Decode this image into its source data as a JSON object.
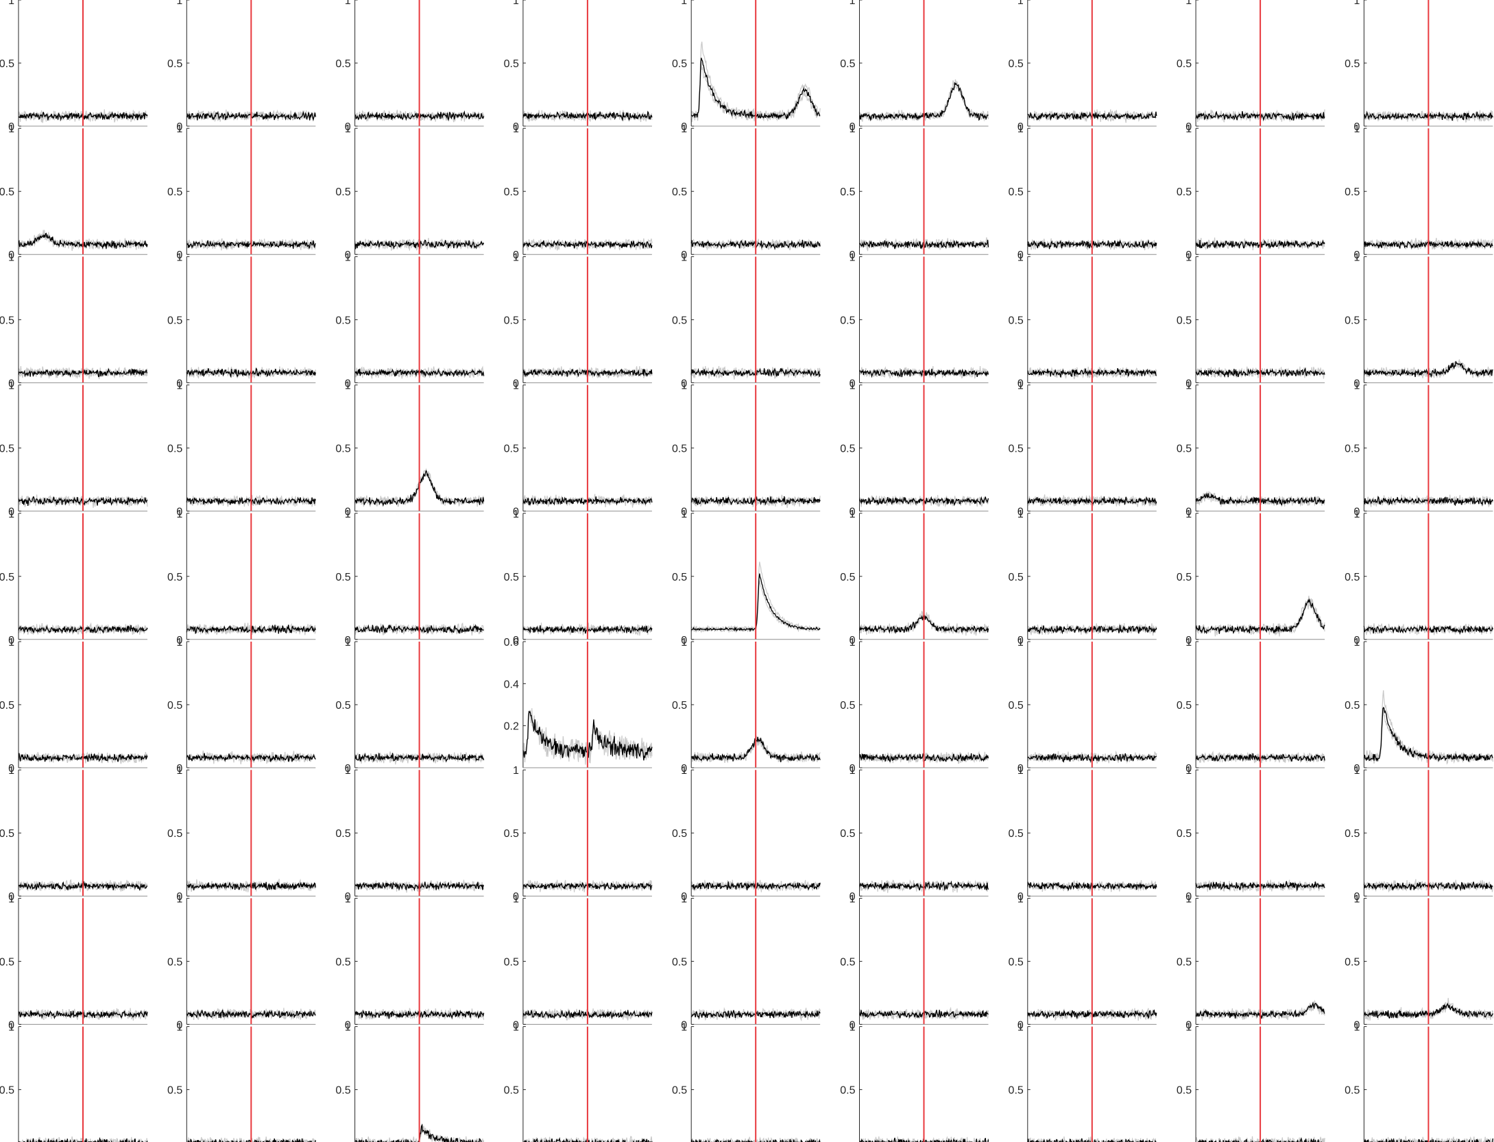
{
  "figure": {
    "rows": 9,
    "cols": 9
  },
  "colors": {
    "mean": "#000000",
    "trials": "#c8c8c8",
    "marker": "#e8383d",
    "axis": "#262626",
    "baseline": "#909090"
  },
  "chart_data": {
    "type": "line",
    "title": "",
    "xlabel": "",
    "ylabel": "",
    "default_ylim": [
      0,
      1
    ],
    "default_yticks": [
      "0",
      "0.5",
      "1"
    ],
    "series_names": [
      "trials",
      "mean"
    ],
    "marker": {
      "type": "vline",
      "x_fraction": 0.5
    },
    "baseline_level": 0.08,
    "noise_amplitude": 0.04,
    "panels": [
      {
        "row": 1,
        "col": 1
      },
      {
        "row": 1,
        "col": 2
      },
      {
        "row": 1,
        "col": 3
      },
      {
        "row": 1,
        "col": 4
      },
      {
        "row": 1,
        "col": 5,
        "spread": 0.2,
        "events": [
          {
            "at": 0.08,
            "peak": 0.55,
            "kind": "decay"
          },
          {
            "at": 0.88,
            "peak": 0.28,
            "kind": "bump"
          }
        ]
      },
      {
        "row": 1,
        "col": 6,
        "events": [
          {
            "at": 0.75,
            "peak": 0.33,
            "kind": "bump"
          }
        ]
      },
      {
        "row": 1,
        "col": 7
      },
      {
        "row": 1,
        "col": 8
      },
      {
        "row": 1,
        "col": 9
      },
      {
        "row": 2,
        "col": 1,
        "events": [
          {
            "at": 0.2,
            "peak": 0.15,
            "kind": "bump"
          }
        ]
      },
      {
        "row": 2,
        "col": 2
      },
      {
        "row": 2,
        "col": 3
      },
      {
        "row": 2,
        "col": 4
      },
      {
        "row": 2,
        "col": 5
      },
      {
        "row": 2,
        "col": 6
      },
      {
        "row": 2,
        "col": 7
      },
      {
        "row": 2,
        "col": 8
      },
      {
        "row": 2,
        "col": 9
      },
      {
        "row": 3,
        "col": 1
      },
      {
        "row": 3,
        "col": 2
      },
      {
        "row": 3,
        "col": 3
      },
      {
        "row": 3,
        "col": 4
      },
      {
        "row": 3,
        "col": 5
      },
      {
        "row": 3,
        "col": 6
      },
      {
        "row": 3,
        "col": 7
      },
      {
        "row": 3,
        "col": 8
      },
      {
        "row": 3,
        "col": 9,
        "events": [
          {
            "at": 0.72,
            "peak": 0.15,
            "kind": "bump"
          }
        ]
      },
      {
        "row": 4,
        "col": 1
      },
      {
        "row": 4,
        "col": 2
      },
      {
        "row": 4,
        "col": 3,
        "events": [
          {
            "at": 0.55,
            "peak": 0.3,
            "kind": "bump"
          }
        ]
      },
      {
        "row": 4,
        "col": 4
      },
      {
        "row": 4,
        "col": 5
      },
      {
        "row": 4,
        "col": 6
      },
      {
        "row": 4,
        "col": 7
      },
      {
        "row": 4,
        "col": 8,
        "events": [
          {
            "at": 0.1,
            "peak": 0.12,
            "kind": "bump"
          }
        ]
      },
      {
        "row": 4,
        "col": 9
      },
      {
        "row": 5,
        "col": 1
      },
      {
        "row": 5,
        "col": 2
      },
      {
        "row": 5,
        "col": 3
      },
      {
        "row": 5,
        "col": 4
      },
      {
        "row": 5,
        "col": 5,
        "spread": 0.2,
        "noise": 0.015,
        "events": [
          {
            "at": 0.53,
            "peak": 0.52,
            "kind": "decay"
          }
        ]
      },
      {
        "row": 5,
        "col": 6,
        "events": [
          {
            "at": 0.5,
            "peak": 0.18,
            "kind": "bump"
          }
        ]
      },
      {
        "row": 5,
        "col": 7
      },
      {
        "row": 5,
        "col": 8,
        "spread": 0.1,
        "events": [
          {
            "at": 0.88,
            "peak": 0.3,
            "kind": "bump"
          }
        ]
      },
      {
        "row": 5,
        "col": 9
      },
      {
        "row": 6,
        "col": 1
      },
      {
        "row": 6,
        "col": 2
      },
      {
        "row": 6,
        "col": 3
      },
      {
        "row": 6,
        "col": 4,
        "ylim": [
          0,
          0.6
        ],
        "yticks": [
          "0.2",
          "0.4",
          "0.6"
        ],
        "noise": 0.06,
        "spread": 0.08,
        "events": [
          {
            "at": 0.05,
            "peak": 0.26,
            "kind": "decay"
          },
          {
            "at": 0.55,
            "peak": 0.18,
            "kind": "decay"
          }
        ]
      },
      {
        "row": 6,
        "col": 5,
        "events": [
          {
            "at": 0.52,
            "peak": 0.22,
            "kind": "bump"
          }
        ]
      },
      {
        "row": 6,
        "col": 6
      },
      {
        "row": 6,
        "col": 7
      },
      {
        "row": 6,
        "col": 8
      },
      {
        "row": 6,
        "col": 9,
        "spread": 0.18,
        "events": [
          {
            "at": 0.15,
            "peak": 0.5,
            "kind": "decay"
          }
        ]
      },
      {
        "row": 7,
        "col": 1
      },
      {
        "row": 7,
        "col": 2
      },
      {
        "row": 7,
        "col": 3
      },
      {
        "row": 7,
        "col": 4
      },
      {
        "row": 7,
        "col": 5
      },
      {
        "row": 7,
        "col": 6
      },
      {
        "row": 7,
        "col": 7
      },
      {
        "row": 7,
        "col": 8
      },
      {
        "row": 7,
        "col": 9
      },
      {
        "row": 8,
        "col": 1
      },
      {
        "row": 8,
        "col": 2
      },
      {
        "row": 8,
        "col": 3
      },
      {
        "row": 8,
        "col": 4
      },
      {
        "row": 8,
        "col": 5
      },
      {
        "row": 8,
        "col": 6
      },
      {
        "row": 8,
        "col": 7
      },
      {
        "row": 8,
        "col": 8,
        "events": [
          {
            "at": 0.92,
            "peak": 0.15,
            "kind": "bump"
          }
        ]
      },
      {
        "row": 8,
        "col": 9,
        "events": [
          {
            "at": 0.65,
            "peak": 0.15,
            "kind": "bump"
          }
        ]
      },
      {
        "row": 9,
        "col": 1
      },
      {
        "row": 9,
        "col": 2
      },
      {
        "row": 9,
        "col": 3,
        "events": [
          {
            "at": 0.52,
            "peak": 0.2,
            "kind": "decay"
          }
        ]
      },
      {
        "row": 9,
        "col": 4
      },
      {
        "row": 9,
        "col": 5
      },
      {
        "row": 9,
        "col": 6
      },
      {
        "row": 9,
        "col": 7
      },
      {
        "row": 9,
        "col": 8
      },
      {
        "row": 9,
        "col": 9
      }
    ]
  }
}
